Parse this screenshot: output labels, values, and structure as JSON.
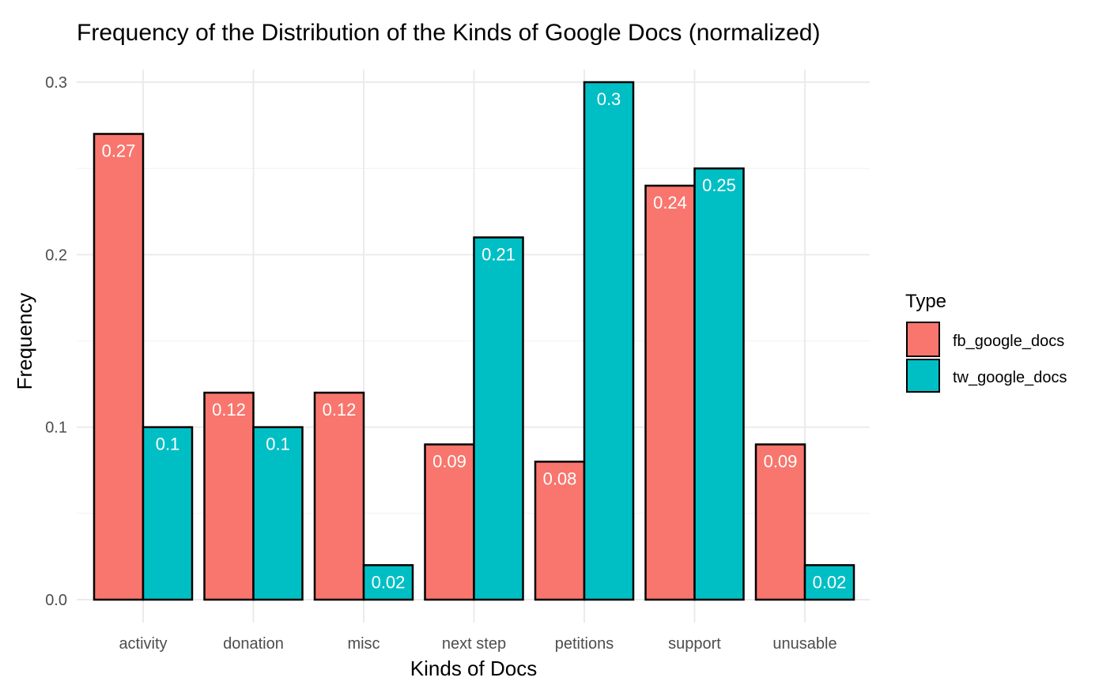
{
  "chart_data": {
    "type": "bar",
    "title": "Frequency of the Distribution of the Kinds of Google Docs (normalized)",
    "xlabel": "Kinds of Docs",
    "ylabel": "Frequency",
    "categories": [
      "activity",
      "donation",
      "misc",
      "next step",
      "petitions",
      "support",
      "unusable"
    ],
    "series": [
      {
        "name": "fb_google_docs",
        "color": "#F8766D",
        "values": [
          0.27,
          0.12,
          0.12,
          0.09,
          0.08,
          0.24,
          0.09
        ]
      },
      {
        "name": "tw_google_docs",
        "color": "#00BFC4",
        "values": [
          0.1,
          0.1,
          0.02,
          0.21,
          0.3,
          0.25,
          0.02
        ]
      }
    ],
    "data_labels": [
      [
        "0.27",
        "0.12",
        "0.12",
        "0.09",
        "0.08",
        "0.24",
        "0.09"
      ],
      [
        "0.1",
        "0.1",
        "0.02",
        "0.21",
        "0.3",
        "0.25",
        "0.02"
      ]
    ],
    "ylim": [
      0,
      0.3
    ],
    "yticks": [
      0.0,
      0.1,
      0.2,
      0.3
    ],
    "ytick_labels": [
      "0.0",
      "0.1",
      "0.2",
      "0.3"
    ],
    "grid": true,
    "legend": {
      "title": "Type",
      "position": "right"
    }
  }
}
